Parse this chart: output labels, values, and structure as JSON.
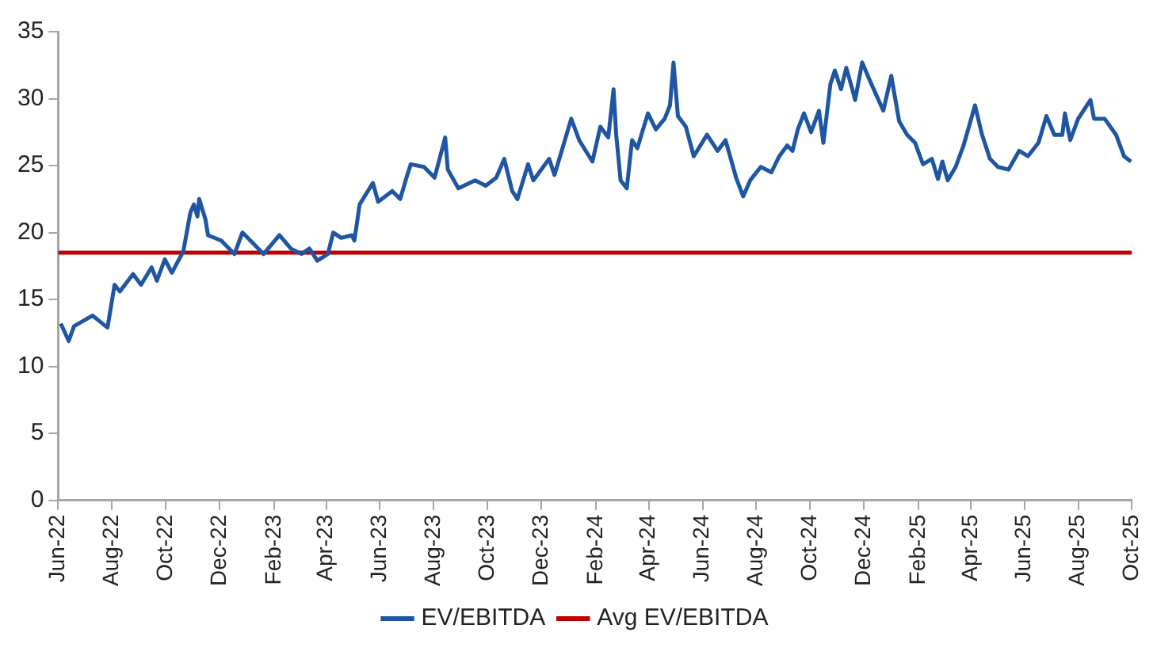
{
  "chart_data": {
    "type": "line",
    "xlim": [
      "2022-06-01",
      "2025-10-01"
    ],
    "xticks": [
      {
        "value": "2022-06-01",
        "label": "Jun-22"
      },
      {
        "value": "2022-08-01",
        "label": "Aug-22"
      },
      {
        "value": "2022-10-01",
        "label": "Oct-22"
      },
      {
        "value": "2022-12-01",
        "label": "Dec-22"
      },
      {
        "value": "2023-02-01",
        "label": "Feb-23"
      },
      {
        "value": "2023-04-01",
        "label": "Apr-23"
      },
      {
        "value": "2023-06-01",
        "label": "Jun-23"
      },
      {
        "value": "2023-08-01",
        "label": "Aug-23"
      },
      {
        "value": "2023-10-01",
        "label": "Oct-23"
      },
      {
        "value": "2023-12-01",
        "label": "Dec-23"
      },
      {
        "value": "2024-02-01",
        "label": "Feb-24"
      },
      {
        "value": "2024-04-01",
        "label": "Apr-24"
      },
      {
        "value": "2024-06-01",
        "label": "Jun-24"
      },
      {
        "value": "2024-08-01",
        "label": "Aug-24"
      },
      {
        "value": "2024-10-01",
        "label": "Oct-24"
      },
      {
        "value": "2024-12-01",
        "label": "Dec-24"
      },
      {
        "value": "2025-02-01",
        "label": "Feb-25"
      },
      {
        "value": "2025-04-01",
        "label": "Apr-25"
      },
      {
        "value": "2025-06-01",
        "label": "Jun-25"
      },
      {
        "value": "2025-08-01",
        "label": "Aug-25"
      },
      {
        "value": "2025-10-01",
        "label": "Oct-25"
      }
    ],
    "ylim": [
      0,
      35
    ],
    "yticks": [
      0,
      5,
      10,
      15,
      20,
      25,
      30,
      35
    ],
    "grid": false,
    "legend": "bottom",
    "marker": "none",
    "line_style": "solid",
    "series": [
      {
        "name": "EV/EBITDA",
        "color": "#1f56a3",
        "x": [
          "2022-06-04",
          "2022-06-13",
          "2022-06-19",
          "2022-07-10",
          "2022-07-27",
          "2022-08-04",
          "2022-08-10",
          "2022-08-25",
          "2022-09-03",
          "2022-09-15",
          "2022-09-21",
          "2022-09-30",
          "2022-10-08",
          "2022-10-21",
          "2022-10-29",
          "2022-11-02",
          "2022-11-06",
          "2022-11-08",
          "2022-11-15",
          "2022-11-18",
          "2022-12-03",
          "2022-12-18",
          "2022-12-27",
          "2023-01-08",
          "2023-01-20",
          "2023-02-07",
          "2023-02-20",
          "2023-03-04",
          "2023-03-13",
          "2023-03-22",
          "2023-04-03",
          "2023-04-09",
          "2023-04-18",
          "2023-04-30",
          "2023-05-03",
          "2023-05-09",
          "2023-05-24",
          "2023-05-30",
          "2023-06-15",
          "2023-06-24",
          "2023-07-02",
          "2023-07-06",
          "2023-07-21",
          "2023-08-02",
          "2023-08-14",
          "2023-08-17",
          "2023-08-29",
          "2023-09-17",
          "2023-09-29",
          "2023-10-11",
          "2023-10-20",
          "2023-10-29",
          "2023-11-04",
          "2023-11-16",
          "2023-11-22",
          "2023-12-10",
          "2023-12-16",
          "2023-12-26",
          "2024-01-04",
          "2024-01-13",
          "2024-01-28",
          "2024-02-06",
          "2024-02-15",
          "2024-02-21",
          "2024-02-24",
          "2024-02-29",
          "2024-03-07",
          "2024-03-13",
          "2024-03-19",
          "2024-03-31",
          "2024-04-09",
          "2024-04-19",
          "2024-04-25",
          "2024-04-29",
          "2024-05-04",
          "2024-05-13",
          "2024-05-22",
          "2024-06-06",
          "2024-06-18",
          "2024-06-27",
          "2024-07-09",
          "2024-07-17",
          "2024-07-25",
          "2024-08-06",
          "2024-08-18",
          "2024-08-27",
          "2024-09-05",
          "2024-09-11",
          "2024-09-17",
          "2024-09-24",
          "2024-10-02",
          "2024-10-11",
          "2024-10-16",
          "2024-10-24",
          "2024-10-29",
          "2024-11-05",
          "2024-11-11",
          "2024-11-17",
          "2024-11-21",
          "2024-11-29",
          "2024-12-08",
          "2024-12-23",
          "2025-01-01",
          "2025-01-10",
          "2025-01-19",
          "2025-01-28",
          "2025-02-06",
          "2025-02-16",
          "2025-02-23",
          "2025-02-28",
          "2025-03-06",
          "2025-03-15",
          "2025-03-24",
          "2025-04-06",
          "2025-04-14",
          "2025-04-23",
          "2025-05-02",
          "2025-05-14",
          "2025-05-26",
          "2025-06-05",
          "2025-06-17",
          "2025-06-26",
          "2025-07-05",
          "2025-07-14",
          "2025-07-17",
          "2025-07-23",
          "2025-08-01",
          "2025-08-15",
          "2025-08-19",
          "2025-08-31",
          "2025-09-13",
          "2025-09-22",
          "2025-09-30"
        ],
        "values": [
          13.2,
          11.9,
          13.0,
          13.8,
          12.9,
          16.1,
          15.6,
          16.9,
          16.1,
          17.4,
          16.4,
          18.0,
          17.0,
          18.6,
          21.5,
          22.1,
          21.2,
          22.5,
          21.0,
          19.8,
          19.4,
          18.4,
          20.0,
          19.2,
          18.4,
          19.8,
          18.8,
          18.4,
          18.8,
          17.9,
          18.4,
          20.0,
          19.6,
          19.8,
          19.4,
          22.1,
          23.7,
          22.3,
          23.1,
          22.5,
          24.3,
          25.1,
          24.9,
          24.1,
          27.1,
          24.7,
          23.3,
          23.9,
          23.5,
          24.1,
          25.5,
          23.1,
          22.5,
          25.1,
          23.9,
          25.5,
          24.3,
          26.5,
          28.5,
          26.9,
          25.3,
          27.9,
          27.1,
          30.7,
          27.3,
          23.9,
          23.3,
          26.9,
          26.3,
          28.9,
          27.7,
          28.5,
          29.5,
          32.7,
          28.7,
          27.9,
          25.7,
          27.3,
          26.1,
          26.9,
          24.1,
          22.7,
          23.9,
          24.9,
          24.5,
          25.7,
          26.5,
          26.1,
          27.7,
          28.9,
          27.5,
          29.1,
          26.7,
          31.1,
          32.1,
          30.7,
          32.3,
          30.9,
          29.9,
          32.7,
          31.3,
          29.1,
          31.7,
          28.3,
          27.3,
          26.7,
          25.1,
          25.5,
          24.0,
          25.3,
          23.9,
          24.9,
          26.5,
          29.5,
          27.3,
          25.5,
          24.9,
          24.7,
          26.1,
          25.7,
          26.7,
          28.7,
          27.3,
          27.3,
          28.9,
          26.9,
          28.5,
          29.9,
          28.5,
          28.5,
          27.3,
          25.7,
          25.3
        ]
      },
      {
        "name": "Avg EV/EBITDA",
        "color": "#c00000",
        "x": [
          "2022-06-01",
          "2025-10-01"
        ],
        "values": [
          18.5,
          18.5
        ]
      }
    ]
  }
}
